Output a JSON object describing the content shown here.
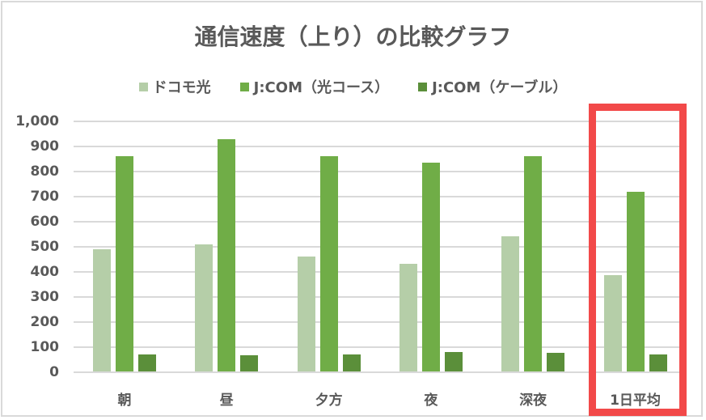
{
  "chart_data": {
    "type": "bar",
    "title": "通信速度（上り）の比較グラフ",
    "xlabel": "",
    "ylabel": "",
    "ylim": [
      0,
      1000
    ],
    "yticks": [
      "0",
      "100",
      "200",
      "300",
      "400",
      "500",
      "600",
      "700",
      "800",
      "900",
      "1,000"
    ],
    "grid": true,
    "legend_position": "top",
    "categories": [
      "朝",
      "昼",
      "夕方",
      "夜",
      "深夜",
      "1日平均"
    ],
    "series": [
      {
        "name": "ドコモ光",
        "color": "#b5cea8",
        "values": [
          490,
          510,
          460,
          430,
          540,
          385
        ]
      },
      {
        "name": "J:COM（光コース）",
        "color": "#70ad47",
        "values": [
          860,
          930,
          860,
          835,
          860,
          720
        ]
      },
      {
        "name": "J:COM（ケーブル）",
        "color": "#5b8f3a",
        "values": [
          70,
          66,
          70,
          80,
          75,
          70
        ]
      }
    ],
    "annotations": [
      {
        "type": "highlight-box",
        "target": "1日平均",
        "color": "#f24949"
      }
    ]
  },
  "colors": {
    "text": "#595959",
    "grid": "#d9d9d9",
    "highlight": "#f24949"
  }
}
